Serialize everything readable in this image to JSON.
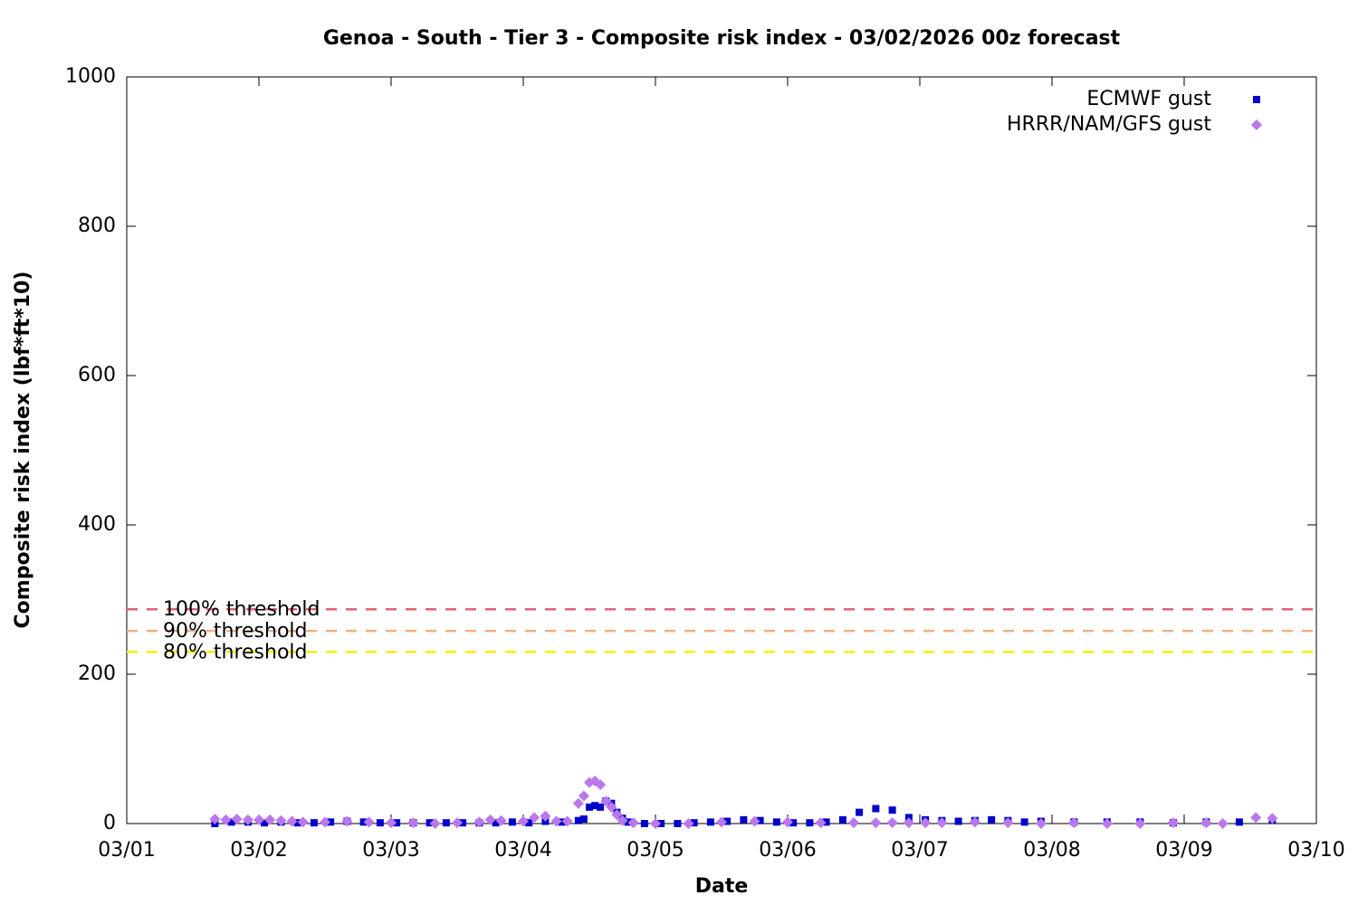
{
  "chart_data": {
    "type": "scatter",
    "title": "Genoa - South - Tier 3 - Composite risk index - 03/02/2026 00z forecast",
    "x_label": "Date",
    "y_label": "Composite risk index (lbf*ft*10)",
    "xlim": [
      0,
      9
    ],
    "xticks": [
      {
        "value": 0,
        "label": "03/01"
      },
      {
        "value": 1,
        "label": "03/02"
      },
      {
        "value": 2,
        "label": "03/03"
      },
      {
        "value": 3,
        "label": "03/04"
      },
      {
        "value": 4,
        "label": "03/05"
      },
      {
        "value": 5,
        "label": "03/06"
      },
      {
        "value": 6,
        "label": "03/07"
      },
      {
        "value": 7,
        "label": "03/08"
      },
      {
        "value": 8,
        "label": "03/09"
      },
      {
        "value": 9,
        "label": "03/10"
      }
    ],
    "ylim": [
      0,
      1000
    ],
    "yticks": [
      0,
      200,
      400,
      600,
      800,
      1000
    ],
    "legend": "top-right",
    "thresholds": [
      {
        "name": "100% threshold",
        "value": 287,
        "color": "#e0607a"
      },
      {
        "name": "90% threshold",
        "value": 258,
        "color": "#f0b080"
      },
      {
        "name": "80% threshold",
        "value": 230,
        "color": "#f0f000"
      }
    ],
    "series": [
      {
        "name": "ECMWF gust",
        "color": "#0000cc",
        "marker": "square",
        "x": [
          0.667,
          0.792,
          0.917,
          1.042,
          1.167,
          1.292,
          1.417,
          1.542,
          1.667,
          1.792,
          1.917,
          2.042,
          2.167,
          2.292,
          2.417,
          2.542,
          2.667,
          2.792,
          2.917,
          3.042,
          3.167,
          3.292,
          3.417,
          3.458,
          3.5,
          3.542,
          3.583,
          3.625,
          3.667,
          3.708,
          3.75,
          3.792,
          3.917,
          4.042,
          4.167,
          4.292,
          4.417,
          4.542,
          4.667,
          4.792,
          4.917,
          5.042,
          5.167,
          5.292,
          5.417,
          5.542,
          5.667,
          5.792,
          5.917,
          6.042,
          6.167,
          6.292,
          6.417,
          6.542,
          6.667,
          6.792,
          6.917,
          7.167,
          7.417,
          7.667,
          7.917,
          8.167,
          8.417,
          8.667
        ],
        "values": [
          0,
          2,
          2,
          1,
          2,
          1,
          1,
          2,
          3,
          2,
          1,
          1,
          1,
          1,
          1,
          1,
          1,
          1,
          2,
          1,
          3,
          2,
          4,
          6,
          22,
          24,
          22,
          30,
          27,
          15,
          7,
          2,
          0,
          0,
          0,
          1,
          2,
          3,
          5,
          4,
          2,
          1,
          1,
          2,
          5,
          15,
          20,
          18,
          8,
          5,
          4,
          3,
          4,
          5,
          4,
          2,
          3,
          2,
          2,
          2,
          1,
          2,
          2,
          5
        ]
      },
      {
        "name": "HRRR/NAM/GFS gust",
        "color": "#bb77ee",
        "marker": "diamond",
        "x": [
          0.667,
          0.75,
          0.833,
          0.917,
          1.0,
          1.083,
          1.167,
          1.25,
          1.333,
          1.5,
          1.667,
          1.833,
          2.0,
          2.167,
          2.333,
          2.5,
          2.667,
          2.75,
          2.833,
          3.0,
          3.083,
          3.167,
          3.25,
          3.333,
          3.417,
          3.458,
          3.5,
          3.542,
          3.583,
          3.625,
          3.667,
          3.708,
          3.75,
          3.833,
          4.0,
          4.25,
          4.5,
          4.75,
          5.0,
          5.25,
          5.5,
          5.667,
          5.792,
          5.917,
          6.042,
          6.167,
          6.417,
          6.667,
          6.917,
          7.167,
          7.417,
          7.667,
          7.917,
          8.167,
          8.292,
          8.542,
          8.667
        ],
        "values": [
          6,
          5,
          6,
          5,
          5,
          5,
          4,
          3,
          2,
          2,
          3,
          2,
          1,
          1,
          0,
          1,
          2,
          5,
          4,
          3,
          8,
          10,
          3,
          3,
          27,
          37,
          55,
          57,
          52,
          30,
          22,
          12,
          4,
          1,
          0,
          0,
          2,
          3,
          2,
          1,
          1,
          1,
          1,
          1,
          1,
          1,
          2,
          1,
          0,
          1,
          0,
          0,
          1,
          1,
          0,
          8,
          7
        ]
      }
    ]
  }
}
